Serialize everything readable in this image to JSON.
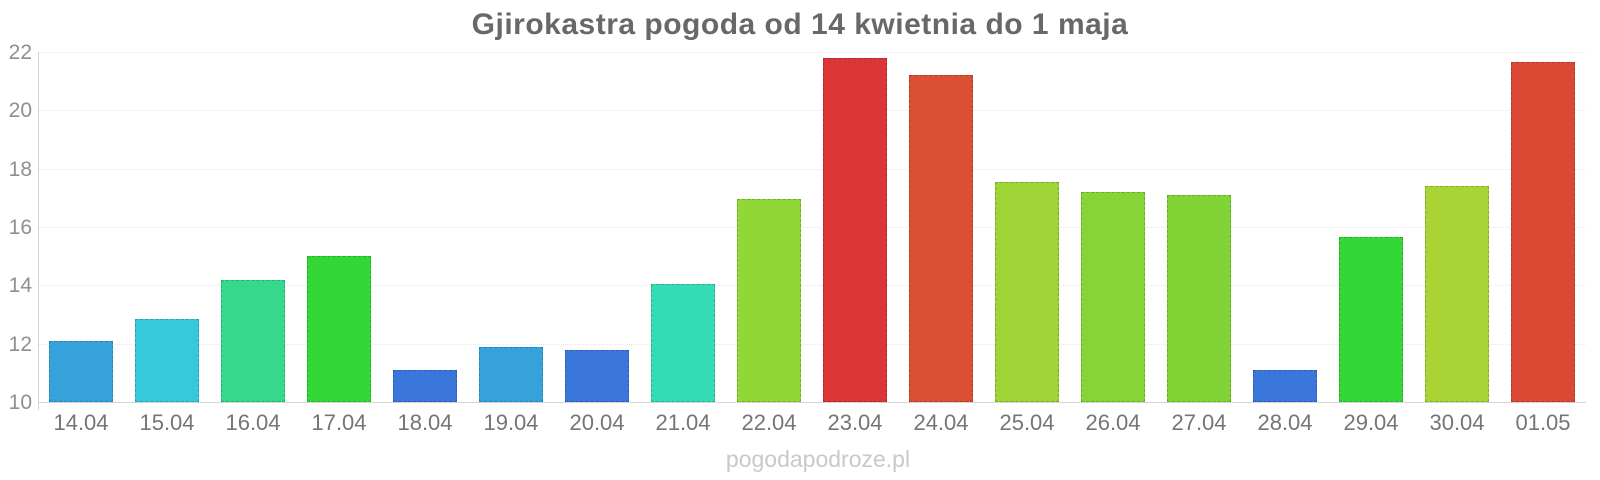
{
  "title": "Gjirokastra pogoda od 14 kwietnia do 1 maja",
  "watermark": "pogodapodroze.pl",
  "chart_data": {
    "type": "bar",
    "title": "Gjirokastra pogoda od 14 kwietnia do 1 maja",
    "categories": [
      "14.04",
      "15.04",
      "16.04",
      "17.04",
      "18.04",
      "19.04",
      "20.04",
      "21.04",
      "22.04",
      "23.04",
      "24.04",
      "25.04",
      "26.04",
      "27.04",
      "28.04",
      "29.04",
      "30.04",
      "01.05"
    ],
    "values": [
      12.1,
      12.85,
      14.2,
      15.0,
      11.1,
      11.9,
      11.8,
      14.05,
      16.95,
      21.8,
      21.2,
      17.55,
      17.2,
      17.1,
      11.1,
      15.65,
      17.4,
      21.65
    ],
    "bar_colors": [
      "#36a2db",
      "#35c9db",
      "#36d98b",
      "#33d836",
      "#3b76db",
      "#36a2db",
      "#3b76db",
      "#35dbb5",
      "#8fd835",
      "#db3535",
      "#db4f35",
      "#9ed435",
      "#86d435",
      "#80d435",
      "#3b76db",
      "#33d836",
      "#a8d535",
      "#db4935"
    ],
    "xlabel": "",
    "ylabel": "",
    "ylim": [
      10,
      22
    ],
    "yticks": [
      10,
      12,
      14,
      16,
      18,
      20,
      22
    ],
    "grid": true,
    "legend": false
  }
}
